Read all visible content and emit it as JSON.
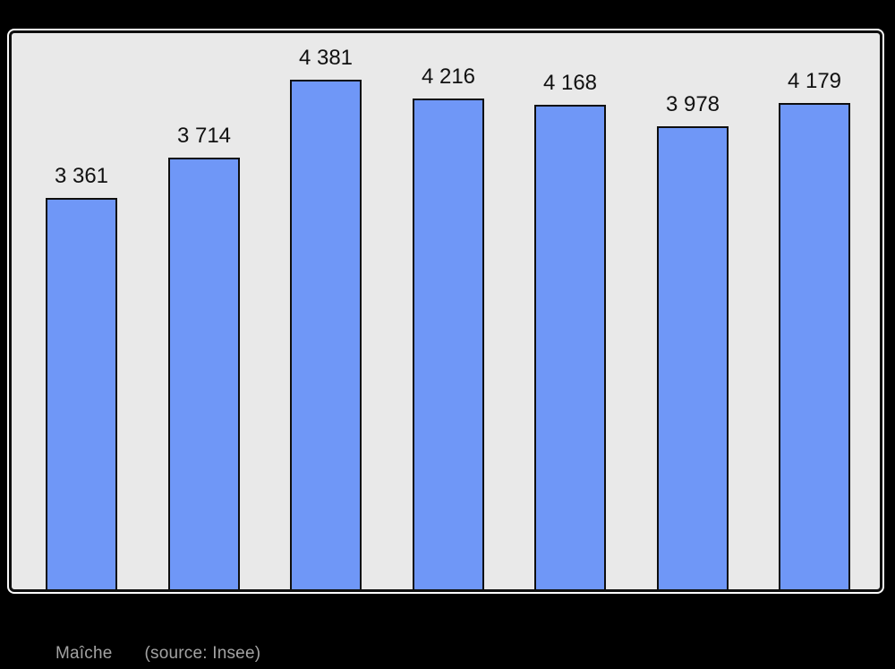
{
  "chart_data": {
    "type": "bar",
    "title": "",
    "xlabel": "",
    "ylabel": "",
    "categories": [
      "",
      "",
      "",
      "",
      "",
      "",
      ""
    ],
    "values": [
      3361,
      3714,
      4381,
      4216,
      4168,
      3978,
      4179
    ],
    "value_labels": [
      "3 361",
      "3 714",
      "4 381",
      "4 216",
      "4 168",
      "3 978",
      "4 179"
    ],
    "ylim": [
      0,
      4781
    ],
    "grid": false,
    "legend": "none",
    "bar_color": "#6f97f7",
    "bar_border_color": "#0e0e0e",
    "plot_background": "#e9e9e9",
    "page_background": "#000000",
    "value_label_color": "#111111"
  },
  "caption": {
    "place": "Maîche",
    "source": "(source: Insee)",
    "color": "#a3a3a3"
  }
}
